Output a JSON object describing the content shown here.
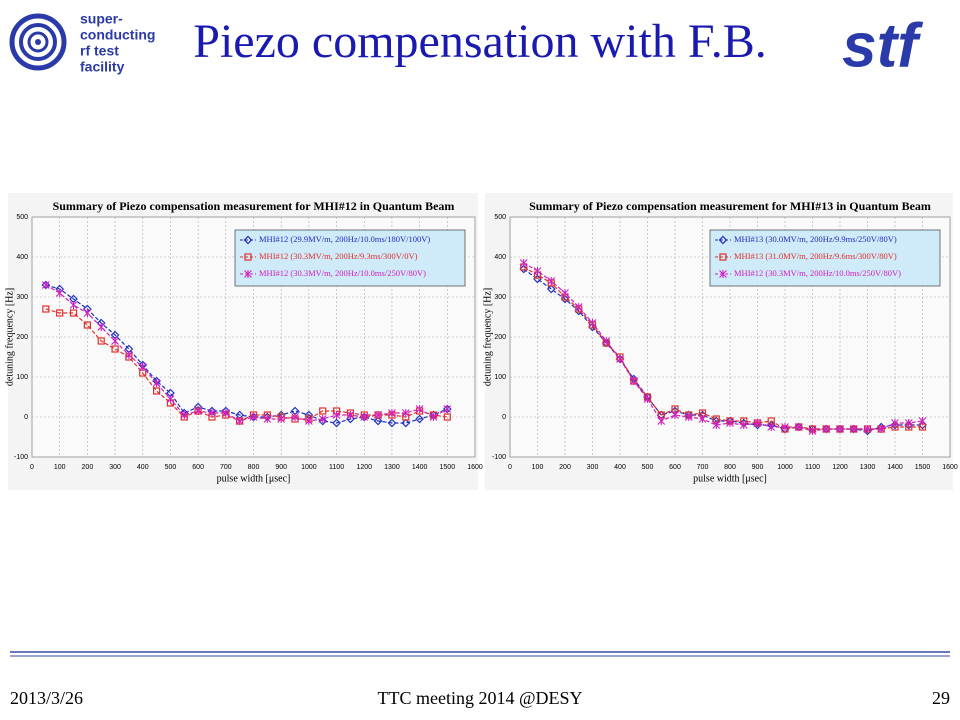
{
  "slide": {
    "title": "Piezo compensation with F.B.",
    "logo_lines": [
      "super-",
      "conducting",
      "rf   test",
      "facility"
    ],
    "brand": "stf",
    "footer_left": "2013/3/26",
    "footer_center": "TTC meeting 2014 @DESY",
    "footer_right": "29"
  },
  "chart_data": [
    {
      "type": "line",
      "title": "Summary of Piezo compensation measurement for MHI#12 in Quantum Beam",
      "xlabel": "pulse width [μsec]",
      "ylabel": "detuning frequency [Hz]",
      "x": [
        50,
        100,
        150,
        200,
        250,
        300,
        350,
        400,
        450,
        500,
        550,
        600,
        650,
        700,
        750,
        800,
        850,
        900,
        950,
        1000,
        1050,
        1100,
        1150,
        1200,
        1250,
        1300,
        1350,
        1400,
        1450,
        1500
      ],
      "series": [
        {
          "name": "MHI#12 (29.9MV/m, 200Hz/10.0ms/180V/100V)",
          "color": "#1f2fbf",
          "marker": "diamond",
          "values": [
            330,
            320,
            295,
            270,
            235,
            205,
            170,
            130,
            90,
            60,
            10,
            25,
            15,
            15,
            5,
            0,
            0,
            5,
            15,
            5,
            -10,
            -15,
            -5,
            0,
            -10,
            -15,
            -15,
            -5,
            5,
            20
          ]
        },
        {
          "name": "MHI#12 (30.3MV/m, 200Hz/9.3ms/300V/0V)",
          "color": "#e0302a",
          "marker": "square",
          "values": [
            270,
            260,
            260,
            230,
            190,
            170,
            150,
            110,
            65,
            35,
            0,
            15,
            0,
            5,
            -10,
            5,
            5,
            0,
            -5,
            -5,
            15,
            15,
            10,
            5,
            5,
            5,
            0,
            15,
            5,
            0
          ]
        },
        {
          "name": "MHI#12 (30.3MV/m, 200Hz/10.0ms/250V/80V)",
          "color": "#d020c0",
          "marker": "star",
          "values": [
            330,
            310,
            280,
            260,
            225,
            190,
            155,
            125,
            85,
            45,
            5,
            15,
            10,
            10,
            -10,
            0,
            -5,
            -5,
            0,
            -10,
            -5,
            5,
            5,
            0,
            5,
            10,
            10,
            20,
            0,
            20
          ]
        }
      ],
      "xlim": [
        0,
        1600
      ],
      "xticks": [
        0,
        100,
        200,
        300,
        400,
        500,
        600,
        700,
        800,
        900,
        1000,
        1100,
        1200,
        1300,
        1400,
        1500,
        1600
      ],
      "ylim": [
        -100,
        500
      ],
      "yticks": [
        -100,
        0,
        100,
        200,
        300,
        400,
        500
      ],
      "grid": true
    },
    {
      "type": "line",
      "title": "Summary of Piezo compensation measurement for MHI#13 in Quantum Beam",
      "xlabel": "pulse width [μsec]",
      "ylabel": "detuning frequency [Hz]",
      "x": [
        50,
        100,
        150,
        200,
        250,
        300,
        350,
        400,
        450,
        500,
        550,
        600,
        650,
        700,
        750,
        800,
        850,
        900,
        950,
        1000,
        1050,
        1100,
        1150,
        1200,
        1250,
        1300,
        1350,
        1400,
        1450,
        1500
      ],
      "series": [
        {
          "name": "MHI#13 (30.0MV/m, 200Hz/9.9ms/250V/80V)",
          "color": "#1f2fbf",
          "marker": "diamond",
          "values": [
            370,
            345,
            320,
            295,
            265,
            225,
            185,
            145,
            95,
            50,
            5,
            15,
            5,
            5,
            -10,
            -10,
            -15,
            -20,
            -20,
            -30,
            -25,
            -30,
            -30,
            -30,
            -30,
            -35,
            -25,
            -20,
            -20,
            -20
          ]
        },
        {
          "name": "MHI#13 (31.0MV/m, 200Hz/9.6ms/300V/80V)",
          "color": "#e0302a",
          "marker": "square",
          "values": [
            375,
            355,
            335,
            300,
            270,
            230,
            185,
            150,
            90,
            50,
            5,
            20,
            5,
            10,
            -5,
            -10,
            -10,
            -15,
            -10,
            -30,
            -25,
            -30,
            -30,
            -30,
            -30,
            -30,
            -30,
            -25,
            -25,
            -25
          ]
        },
        {
          "name": "MHI#12 (30.3MV/m, 200Hz/10.0ms/250V/80V)",
          "color": "#d020c0",
          "marker": "star",
          "values": [
            385,
            365,
            340,
            310,
            275,
            235,
            190,
            145,
            90,
            45,
            -10,
            5,
            0,
            -5,
            -20,
            -15,
            -20,
            -15,
            -25,
            -25,
            -25,
            -35,
            -30,
            -30,
            -30,
            -30,
            -30,
            -15,
            -15,
            -10
          ]
        }
      ],
      "xlim": [
        0,
        1600
      ],
      "xticks": [
        0,
        100,
        200,
        300,
        400,
        500,
        600,
        700,
        800,
        900,
        1000,
        1100,
        1200,
        1300,
        1400,
        1500,
        1600
      ],
      "ylim": [
        -100,
        500
      ],
      "yticks": [
        -100,
        0,
        100,
        200,
        300,
        400,
        500
      ],
      "grid": true
    }
  ]
}
